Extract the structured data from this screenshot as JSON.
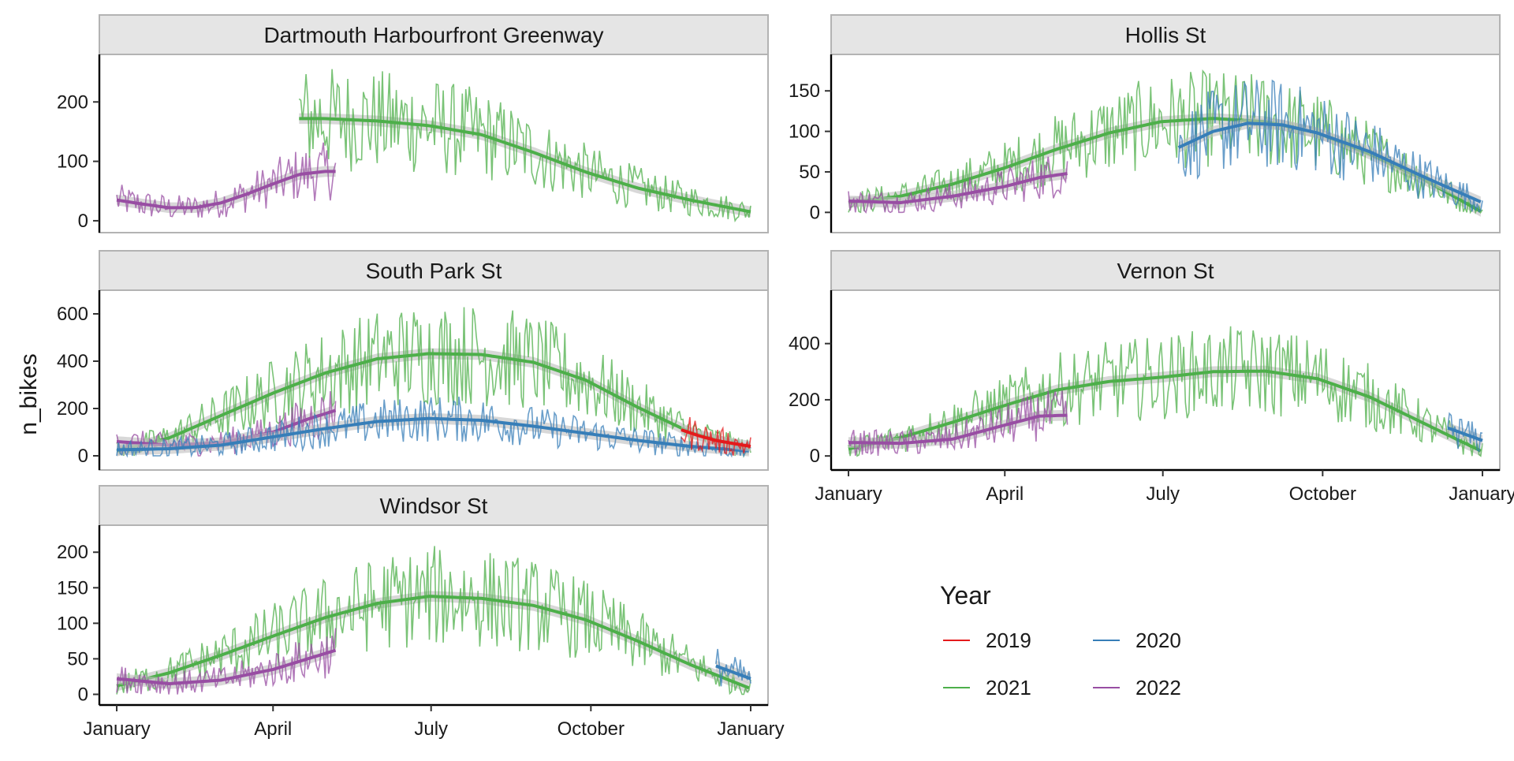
{
  "chart_data": {
    "type": "line",
    "ylabel": "n_bikes",
    "legend": {
      "title": "Year",
      "placement": "bottom-right",
      "entries": [
        {
          "label": "2019",
          "color": "#E41A1C"
        },
        {
          "label": "2020",
          "color": "#377EB8"
        },
        {
          "label": "2021",
          "color": "#4DAF4A"
        },
        {
          "label": "2022",
          "color": "#984EA3"
        }
      ]
    },
    "x_tick_labels": [
      "January",
      "April",
      "July",
      "October",
      "January"
    ],
    "panels": [
      {
        "title": "Dartmouth Harbourfront Greenway",
        "ylim": [
          -20,
          280
        ],
        "yticks": [
          0,
          100,
          200
        ],
        "series": [
          {
            "year": "2022",
            "smooth": [
              [
                0,
                35
              ],
              [
                15,
                28
              ],
              [
                30,
                22
              ],
              [
                45,
                22
              ],
              [
                60,
                30
              ],
              [
                75,
                45
              ],
              [
                90,
                62
              ],
              [
                105,
                78
              ],
              [
                120,
                83
              ],
              [
                126,
                83
              ]
            ]
          },
          {
            "year": "2021",
            "smooth": [
              [
                105,
                172
              ],
              [
                120,
                172
              ],
              [
                150,
                168
              ],
              [
                180,
                160
              ],
              [
                210,
                145
              ],
              [
                240,
                115
              ],
              [
                270,
                82
              ],
              [
                300,
                55
              ],
              [
                330,
                35
              ],
              [
                365,
                15
              ]
            ]
          }
        ]
      },
      {
        "title": "Hollis St",
        "ylim": [
          -25,
          195
        ],
        "yticks": [
          0,
          50,
          100,
          150
        ],
        "series": [
          {
            "year": "2021",
            "smooth": [
              [
                0,
                12
              ],
              [
                30,
                20
              ],
              [
                60,
                35
              ],
              [
                90,
                55
              ],
              [
                120,
                78
              ],
              [
                150,
                98
              ],
              [
                180,
                112
              ],
              [
                210,
                116
              ],
              [
                240,
                112
              ],
              [
                270,
                98
              ],
              [
                300,
                72
              ],
              [
                330,
                42
              ],
              [
                365,
                0
              ]
            ]
          },
          {
            "year": "2022",
            "smooth": [
              [
                0,
                14
              ],
              [
                30,
                12
              ],
              [
                60,
                20
              ],
              [
                90,
                32
              ],
              [
                110,
                43
              ],
              [
                126,
                48
              ]
            ]
          },
          {
            "year": "2020",
            "smooth": [
              [
                190,
                80
              ],
              [
                210,
                100
              ],
              [
                230,
                110
              ],
              [
                250,
                108
              ],
              [
                270,
                98
              ],
              [
                300,
                75
              ],
              [
                330,
                45
              ],
              [
                365,
                12
              ]
            ]
          }
        ]
      },
      {
        "title": "South Park St",
        "ylim": [
          -60,
          700
        ],
        "yticks": [
          0,
          200,
          400,
          600
        ],
        "series": [
          {
            "year": "2021",
            "smooth": [
              [
                0,
                20
              ],
              [
                30,
                75
              ],
              [
                60,
                170
              ],
              [
                90,
                265
              ],
              [
                120,
                350
              ],
              [
                150,
                410
              ],
              [
                180,
                432
              ],
              [
                210,
                428
              ],
              [
                240,
                395
              ],
              [
                270,
                320
              ],
              [
                300,
                205
              ],
              [
                330,
                100
              ],
              [
                365,
                25
              ]
            ]
          },
          {
            "year": "2022",
            "smooth": [
              [
                0,
                60
              ],
              [
                30,
                45
              ],
              [
                60,
                55
              ],
              [
                90,
                100
              ],
              [
                110,
                155
              ],
              [
                126,
                192
              ]
            ]
          },
          {
            "year": "2020",
            "smooth": [
              [
                0,
                25
              ],
              [
                30,
                30
              ],
              [
                60,
                45
              ],
              [
                90,
                80
              ],
              [
                120,
                115
              ],
              [
                150,
                145
              ],
              [
                180,
                158
              ],
              [
                210,
                150
              ],
              [
                240,
                125
              ],
              [
                270,
                95
              ],
              [
                300,
                65
              ],
              [
                330,
                40
              ],
              [
                365,
                20
              ]
            ]
          },
          {
            "year": "2019",
            "smooth": [
              [
                325,
                110
              ],
              [
                335,
                85
              ],
              [
                345,
                65
              ],
              [
                355,
                52
              ],
              [
                365,
                40
              ]
            ]
          }
        ]
      },
      {
        "title": "Vernon St",
        "ylim": [
          -50,
          590
        ],
        "yticks": [
          0,
          200,
          400
        ],
        "series": [
          {
            "year": "2021",
            "smooth": [
              [
                0,
                25
              ],
              [
                30,
                65
              ],
              [
                60,
                120
              ],
              [
                90,
                180
              ],
              [
                120,
                235
              ],
              [
                150,
                265
              ],
              [
                180,
                280
              ],
              [
                210,
                300
              ],
              [
                240,
                302
              ],
              [
                270,
                275
              ],
              [
                300,
                210
              ],
              [
                330,
                120
              ],
              [
                365,
                15
              ]
            ]
          },
          {
            "year": "2022",
            "smooth": [
              [
                0,
                48
              ],
              [
                30,
                45
              ],
              [
                60,
                60
              ],
              [
                90,
                110
              ],
              [
                110,
                142
              ],
              [
                126,
                145
              ]
            ]
          },
          {
            "year": "2020",
            "smooth": [
              [
                345,
                100
              ],
              [
                365,
                55
              ]
            ]
          }
        ]
      },
      {
        "title": "Windsor St",
        "ylim": [
          -15,
          238
        ],
        "yticks": [
          0,
          50,
          100,
          150,
          200
        ],
        "series": [
          {
            "year": "2021",
            "smooth": [
              [
                0,
                12
              ],
              [
                30,
                30
              ],
              [
                60,
                55
              ],
              [
                90,
                82
              ],
              [
                120,
                108
              ],
              [
                150,
                128
              ],
              [
                180,
                138
              ],
              [
                210,
                135
              ],
              [
                240,
                125
              ],
              [
                270,
                105
              ],
              [
                300,
                75
              ],
              [
                330,
                42
              ],
              [
                365,
                8
              ]
            ]
          },
          {
            "year": "2022",
            "smooth": [
              [
                0,
                22
              ],
              [
                30,
                15
              ],
              [
                60,
                20
              ],
              [
                90,
                35
              ],
              [
                110,
                50
              ],
              [
                126,
                62
              ]
            ]
          },
          {
            "year": "2020",
            "smooth": [
              [
                345,
                40
              ],
              [
                365,
                22
              ]
            ]
          }
        ]
      }
    ]
  }
}
